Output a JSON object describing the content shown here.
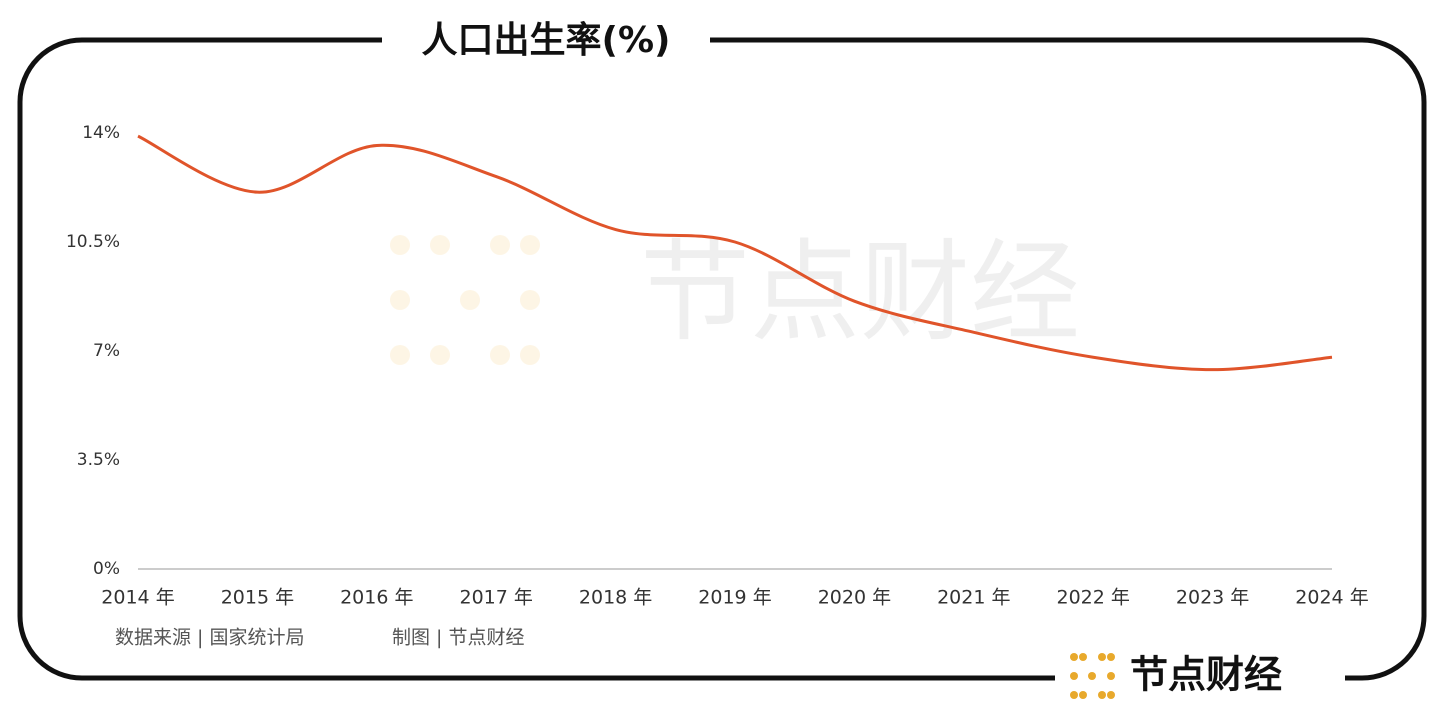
{
  "chart_data": {
    "type": "line",
    "title": "人口出生率(%)",
    "categories": [
      "2014 年",
      "2015 年",
      "2016 年",
      "2017 年",
      "2018 年",
      "2019 年",
      "2020 年",
      "2021 年",
      "2022 年",
      "2023 年",
      "2024 年"
    ],
    "series": [
      {
        "color": "#e0542a",
        "values": [
          13.9,
          12.1,
          13.6,
          12.6,
          10.9,
          10.5,
          8.6,
          7.6,
          6.8,
          6.4,
          6.8
        ]
      }
    ],
    "ylim": [
      0,
      14
    ],
    "yticks": [
      {
        "value": 0,
        "label": "0%"
      },
      {
        "value": 3.5,
        "label": "3.5%"
      },
      {
        "value": 7,
        "label": "7%"
      },
      {
        "value": 10.5,
        "label": "10.5%"
      },
      {
        "value": 14,
        "label": "14%"
      }
    ],
    "source": "数据来源 | 国家统计局",
    "credit": "制图 | 节点财经",
    "brand": "节点财经",
    "watermark": "节点财经"
  }
}
